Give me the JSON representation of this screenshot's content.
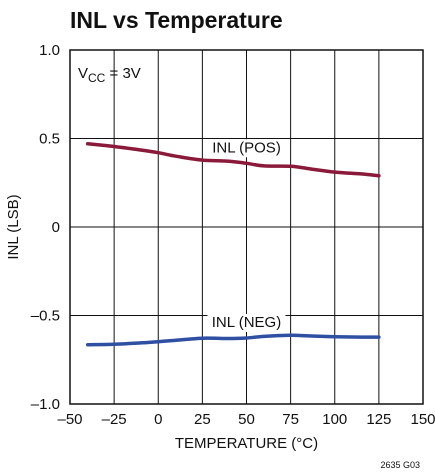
{
  "chart_data": {
    "type": "line",
    "title": "INL vs Temperature",
    "xlabel": "TEMPERATURE (°C)",
    "ylabel": "INL (LSB)",
    "xlim": [
      -50,
      150
    ],
    "ylim": [
      -1.0,
      1.0
    ],
    "x_ticks": [
      -50,
      -25,
      0,
      25,
      50,
      75,
      100,
      125,
      150
    ],
    "x_tick_labels": [
      "–50",
      "–25",
      "0",
      "25",
      "50",
      "75",
      "100",
      "125",
      "150"
    ],
    "y_ticks": [
      1.0,
      0.5,
      0,
      -0.5,
      -1.0
    ],
    "y_tick_labels": [
      "1.0",
      "0.5",
      "0",
      "–0.5",
      "–1.0"
    ],
    "grid": true,
    "annotation_vcc": {
      "main": "V",
      "sub": "CC",
      "rest": " = 3V"
    },
    "figure_id": "2635 G03",
    "series": [
      {
        "name": "INL (POS)",
        "color": "#8b1a3a",
        "x": [
          -40,
          -25,
          -10,
          0,
          10,
          25,
          40,
          50,
          60,
          75,
          85,
          100,
          115,
          125
        ],
        "y": [
          0.47,
          0.455,
          0.435,
          0.42,
          0.4,
          0.378,
          0.372,
          0.36,
          0.345,
          0.343,
          0.33,
          0.31,
          0.3,
          0.29
        ]
      },
      {
        "name": "INL (NEG)",
        "color": "#2f4fa3",
        "x": [
          -40,
          -25,
          -10,
          0,
          10,
          25,
          40,
          50,
          60,
          75,
          85,
          100,
          115,
          125
        ],
        "y": [
          -0.665,
          -0.662,
          -0.655,
          -0.648,
          -0.64,
          -0.628,
          -0.63,
          -0.627,
          -0.618,
          -0.612,
          -0.615,
          -0.62,
          -0.622,
          -0.622
        ]
      }
    ]
  }
}
